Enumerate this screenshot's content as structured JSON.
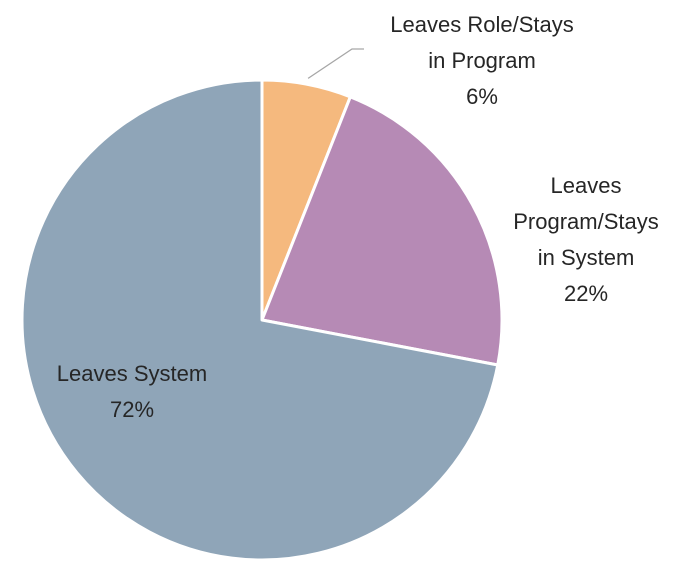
{
  "chart_data": {
    "type": "pie",
    "start_angle": "12 o'clock",
    "direction": "clockwise",
    "slices": [
      {
        "name_lines": [
          "Leaves Role/Stays",
          "in Program"
        ],
        "label": "6%",
        "value": 6,
        "color": "#f5b97e"
      },
      {
        "name_lines": [
          "Leaves",
          "Program/Stays",
          "in System"
        ],
        "label": "22%",
        "value": 22,
        "color": "#b68ab5"
      },
      {
        "name_lines": [
          "Leaves System"
        ],
        "label": "72%",
        "value": 72,
        "color": "#8fa5b8"
      }
    ],
    "leader_line_color": "#a6a6a6",
    "slice_border_color": "#ffffff"
  }
}
